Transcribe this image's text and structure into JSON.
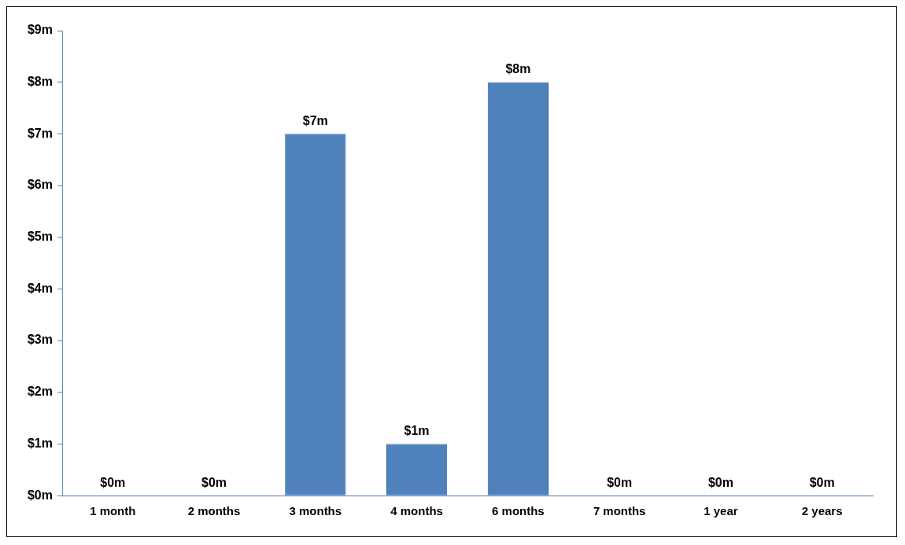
{
  "chart_data": {
    "type": "bar",
    "categories": [
      "1 month",
      "2 months",
      "3 months",
      "4 months",
      "6 months",
      "7 months",
      "1 year",
      "2 years"
    ],
    "values": [
      0,
      0,
      7,
      1,
      8,
      0,
      0,
      0
    ],
    "value_labels": [
      "$0m",
      "$0m",
      "$7m",
      "$1m",
      "$8m",
      "$0m",
      "$0m",
      "$0m"
    ],
    "color": "#4f81bd",
    "ylim": [
      0,
      9
    ],
    "yticks": [
      {
        "value": 0,
        "label": "$0m"
      },
      {
        "value": 1,
        "label": "$1m"
      },
      {
        "value": 2,
        "label": "$2m"
      },
      {
        "value": 3,
        "label": "$3m"
      },
      {
        "value": 4,
        "label": "$4m"
      },
      {
        "value": 5,
        "label": "$5m"
      },
      {
        "value": 6,
        "label": "$6m"
      },
      {
        "value": 7,
        "label": "$7m"
      },
      {
        "value": 8,
        "label": "$8m"
      },
      {
        "value": 9,
        "label": "$9m"
      }
    ],
    "grid": false,
    "legend": false
  }
}
